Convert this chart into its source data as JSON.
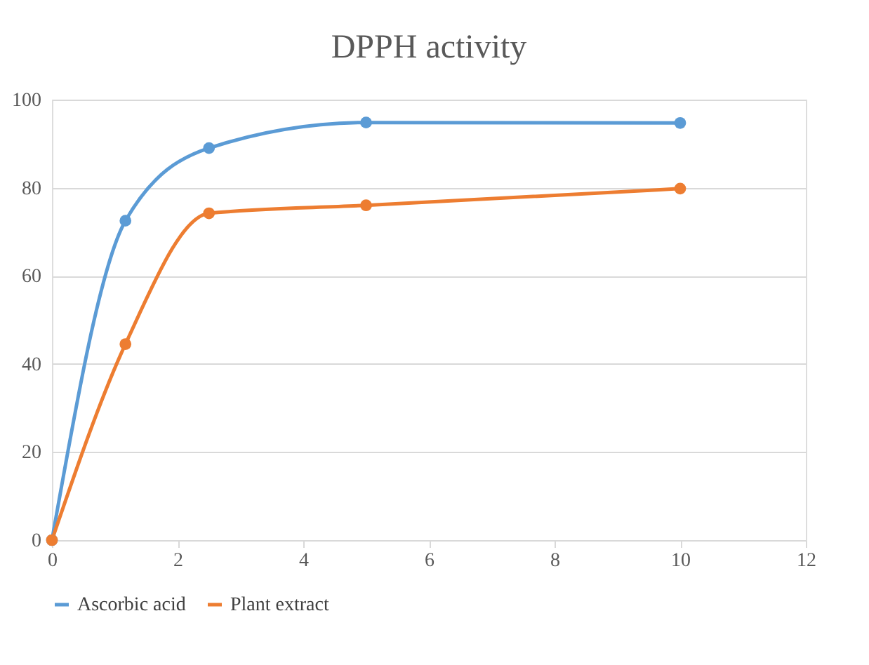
{
  "chart_data": {
    "type": "line",
    "title": "DPPH activity",
    "x": [
      0,
      1.17,
      2.5,
      5,
      10
    ],
    "series": [
      {
        "name": "Ascorbic acid",
        "color": "#5b9bd5",
        "values": [
          0,
          72.5,
          89,
          94.8,
          94.7
        ]
      },
      {
        "name": "Plant extract",
        "color": "#ed7d31",
        "values": [
          0,
          44.5,
          74.2,
          76,
          79.8
        ]
      }
    ],
    "xlim": [
      0,
      12
    ],
    "xticks": [
      0,
      2,
      4,
      6,
      8,
      10,
      12
    ],
    "ylim": [
      0,
      100
    ],
    "yticks": [
      0,
      20,
      40,
      60,
      80,
      100
    ],
    "grid": "y",
    "legend": "bottom",
    "marker": "circle",
    "line_style": "solid"
  }
}
